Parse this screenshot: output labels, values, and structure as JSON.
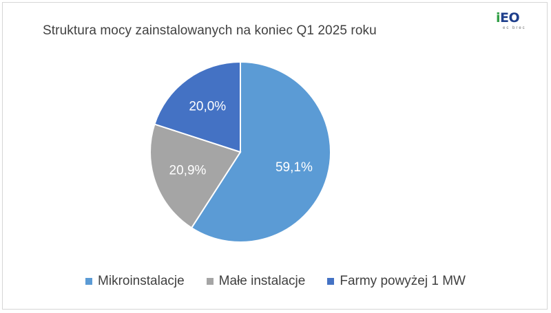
{
  "logo": {
    "main_i": "i",
    "main_rest": "EO",
    "sub": "ec brec"
  },
  "colors": {
    "slice_1": "#5b9bd5",
    "slice_2": "#a5a5a5",
    "slice_3": "#4472c4",
    "label_text": "#ffffff",
    "title_text": "#404040"
  },
  "chart_data": {
    "type": "pie",
    "title": "Struktura mocy zainstalowanych na koniec Q1 2025 roku",
    "categories": [
      "Mikroinstalacje",
      "Małe instalacje",
      "Farmy powyżej 1 MW"
    ],
    "values": [
      59.1,
      20.9,
      20.0
    ],
    "data_labels": [
      "59,1%",
      "20,9%",
      "20,0%"
    ],
    "colors": [
      "#5b9bd5",
      "#a5a5a5",
      "#4472c4"
    ],
    "start_angle_deg": 0,
    "direction": "clockwise",
    "legend_position": "bottom"
  }
}
